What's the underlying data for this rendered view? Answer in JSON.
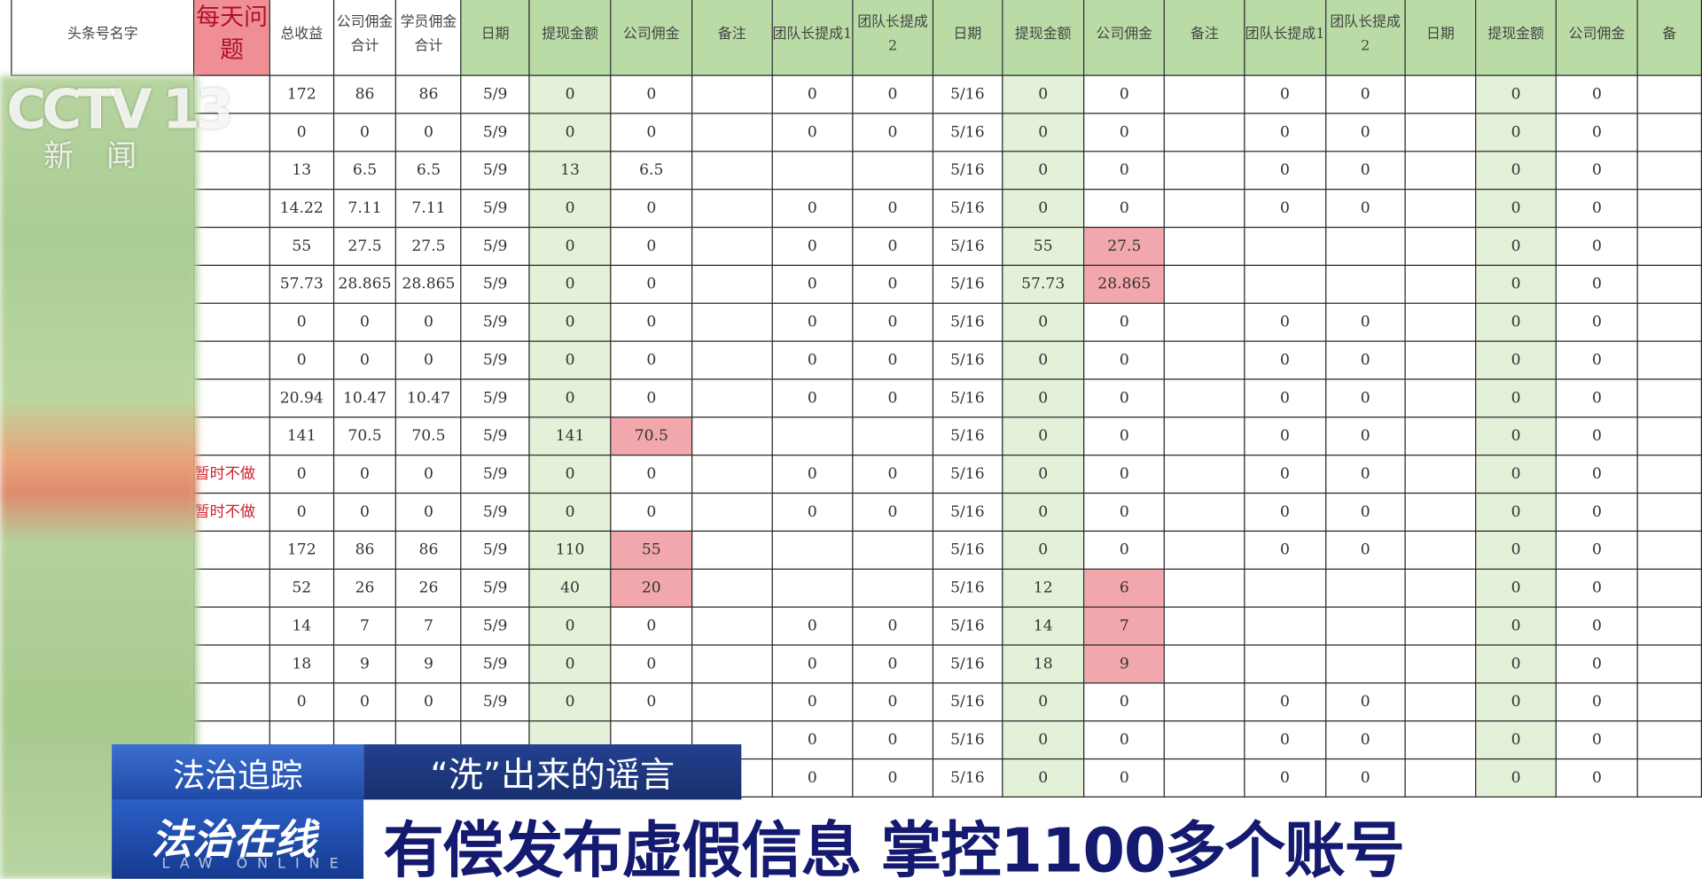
{
  "headers": [
    "头条号名字",
    "每天问题",
    "总收益",
    "公司佣金合计",
    "学员佣金合计",
    "日期",
    "提现金额",
    "公司佣金",
    "备注",
    "团队长提成1",
    "团队长提成2",
    "日期",
    "提现金额",
    "公司佣金",
    "备注",
    "团队长提成1",
    "团队长提成2",
    "日期",
    "提现金额",
    "公司佣金",
    "备"
  ],
  "rows": [
    {
      "issue": "",
      "cells": [
        "172",
        "86",
        "86",
        "5/9",
        "0",
        "0",
        "",
        "0",
        "0",
        "5/16",
        "0",
        "0",
        "",
        "0",
        "0",
        "",
        "0",
        "0",
        ""
      ],
      "red": []
    },
    {
      "issue": "",
      "cells": [
        "0",
        "0",
        "0",
        "5/9",
        "0",
        "0",
        "",
        "0",
        "0",
        "5/16",
        "0",
        "0",
        "",
        "0",
        "0",
        "",
        "0",
        "0",
        ""
      ],
      "red": []
    },
    {
      "issue": "",
      "cells": [
        "13",
        "6.5",
        "6.5",
        "5/9",
        "13",
        "6.5",
        "",
        "",
        "",
        "5/16",
        "0",
        "0",
        "",
        "0",
        "0",
        "",
        "0",
        "0",
        ""
      ],
      "red": []
    },
    {
      "issue": "",
      "cells": [
        "14.22",
        "7.11",
        "7.11",
        "5/9",
        "0",
        "0",
        "",
        "0",
        "0",
        "5/16",
        "0",
        "0",
        "",
        "0",
        "0",
        "",
        "0",
        "0",
        ""
      ],
      "red": []
    },
    {
      "issue": "",
      "cells": [
        "55",
        "27.5",
        "27.5",
        "5/9",
        "0",
        "0",
        "",
        "0",
        "0",
        "5/16",
        "55",
        "27.5",
        "",
        "",
        "",
        "",
        "0",
        "0",
        ""
      ],
      "red": [
        11
      ]
    },
    {
      "issue": "",
      "cells": [
        "57.73",
        "28.865",
        "28.865",
        "5/9",
        "0",
        "0",
        "",
        "0",
        "0",
        "5/16",
        "57.73",
        "28.865",
        "",
        "",
        "",
        "",
        "0",
        "0",
        ""
      ],
      "red": [
        11
      ]
    },
    {
      "issue": "",
      "cells": [
        "0",
        "0",
        "0",
        "5/9",
        "0",
        "0",
        "",
        "0",
        "0",
        "5/16",
        "0",
        "0",
        "",
        "0",
        "0",
        "",
        "0",
        "0",
        ""
      ],
      "red": []
    },
    {
      "issue": "",
      "cells": [
        "0",
        "0",
        "0",
        "5/9",
        "0",
        "0",
        "",
        "0",
        "0",
        "5/16",
        "0",
        "0",
        "",
        "0",
        "0",
        "",
        "0",
        "0",
        ""
      ],
      "red": []
    },
    {
      "issue": "",
      "cells": [
        "20.94",
        "10.47",
        "10.47",
        "5/9",
        "0",
        "0",
        "",
        "0",
        "0",
        "5/16",
        "0",
        "0",
        "",
        "0",
        "0",
        "",
        "0",
        "0",
        ""
      ],
      "red": []
    },
    {
      "issue": "",
      "cells": [
        "141",
        "70.5",
        "70.5",
        "5/9",
        "141",
        "70.5",
        "",
        "",
        "",
        "5/16",
        "0",
        "0",
        "",
        "0",
        "0",
        "",
        "0",
        "0",
        ""
      ],
      "red": [
        5
      ]
    },
    {
      "issue": "暂时不做",
      "cells": [
        "0",
        "0",
        "0",
        "5/9",
        "0",
        "0",
        "",
        "0",
        "0",
        "5/16",
        "0",
        "0",
        "",
        "0",
        "0",
        "",
        "0",
        "0",
        ""
      ],
      "red": []
    },
    {
      "issue": "暂时不做",
      "cells": [
        "0",
        "0",
        "0",
        "5/9",
        "0",
        "0",
        "",
        "0",
        "0",
        "5/16",
        "0",
        "0",
        "",
        "0",
        "0",
        "",
        "0",
        "0",
        ""
      ],
      "red": []
    },
    {
      "issue": "",
      "cells": [
        "172",
        "86",
        "86",
        "5/9",
        "110",
        "55",
        "",
        "",
        "",
        "5/16",
        "0",
        "0",
        "",
        "0",
        "0",
        "",
        "0",
        "0",
        ""
      ],
      "red": [
        5
      ]
    },
    {
      "issue": "",
      "cells": [
        "52",
        "26",
        "26",
        "5/9",
        "40",
        "20",
        "",
        "",
        "",
        "5/16",
        "12",
        "6",
        "",
        "",
        "",
        "",
        "0",
        "0",
        ""
      ],
      "red": [
        5,
        11
      ]
    },
    {
      "issue": "",
      "cells": [
        "14",
        "7",
        "7",
        "5/9",
        "0",
        "0",
        "",
        "0",
        "0",
        "5/16",
        "14",
        "7",
        "",
        "",
        "",
        "",
        "0",
        "0",
        ""
      ],
      "red": [
        11
      ]
    },
    {
      "issue": "",
      "cells": [
        "18",
        "9",
        "9",
        "5/9",
        "0",
        "0",
        "",
        "0",
        "0",
        "5/16",
        "18",
        "9",
        "",
        "",
        "",
        "",
        "0",
        "0",
        ""
      ],
      "red": [
        11
      ]
    },
    {
      "issue": "",
      "cells": [
        "0",
        "0",
        "0",
        "5/9",
        "0",
        "0",
        "",
        "0",
        "0",
        "5/16",
        "0",
        "0",
        "",
        "0",
        "0",
        "",
        "0",
        "0",
        ""
      ],
      "red": []
    },
    {
      "issue": "",
      "cells": [
        "",
        "",
        "",
        "",
        "",
        "",
        "",
        "0",
        "0",
        "5/16",
        "0",
        "0",
        "",
        "0",
        "0",
        "",
        "0",
        "0",
        ""
      ],
      "red": []
    },
    {
      "issue": "",
      "cells": [
        "",
        "",
        "",
        "",
        "",
        "",
        "",
        "0",
        "0",
        "5/16",
        "0",
        "0",
        "",
        "0",
        "0",
        "",
        "0",
        "0",
        ""
      ],
      "red": []
    }
  ],
  "overlay": {
    "logo": "CCTV 13",
    "logo_sub": "新闻",
    "segment": "法治追踪",
    "topic": "“洗”出来的谣言",
    "show": "法治在线",
    "show_en": "LAW ONLINE",
    "headline": "有偿发布虚假信息 掌控1100多个账号"
  },
  "colors": {
    "header_green": "#b9dca6",
    "withdraw_green": "#e3f1d9",
    "flag_red": "#f2a7ad",
    "banner_blue": "#1f4aa8",
    "headline_navy": "#141a70"
  }
}
